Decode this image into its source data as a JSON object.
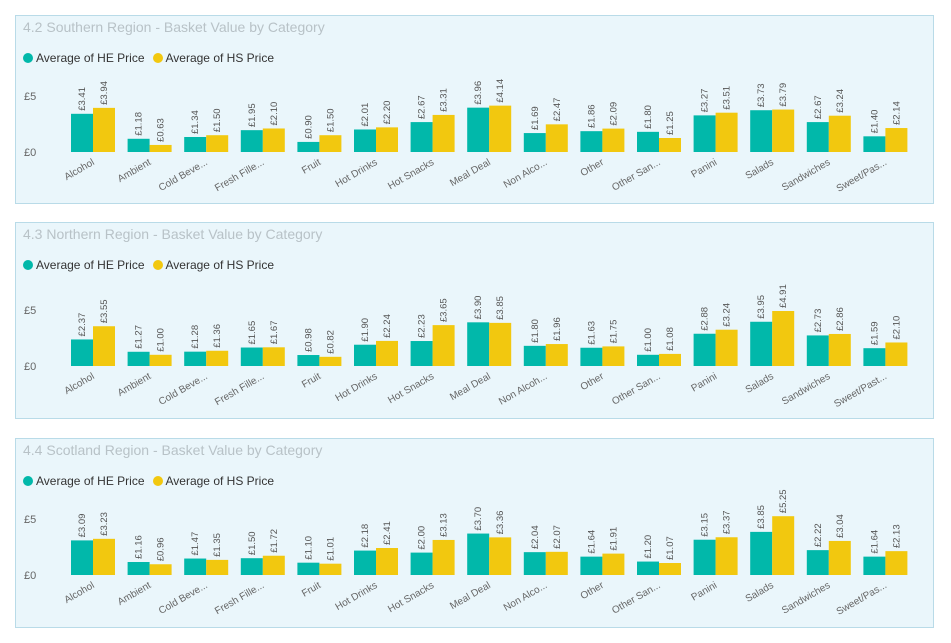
{
  "colors": {
    "he": "#01b8aa",
    "hs": "#f2c80f",
    "panel_bg": "#eaf6fb",
    "panel_border": "#b9dbe8"
  },
  "legend": {
    "he_label": "Average of HE Price",
    "hs_label": "Average of HS Price"
  },
  "chart_data": [
    {
      "type": "bar",
      "title": "4.2 Southern Region - Basket Value by Category",
      "categories": [
        "Alcohol",
        "Ambient",
        "Cold Beve...",
        "Fresh Fille...",
        "Fruit",
        "Hot Drinks",
        "Hot Snacks",
        "Meal Deal",
        "Non Alco...",
        "Other",
        "Other San...",
        "Panini",
        "Salads",
        "Sandwiches",
        "Sweet/Pas..."
      ],
      "series": [
        {
          "name": "Average of HE Price",
          "values": [
            3.41,
            1.18,
            1.34,
            1.95,
            0.9,
            2.01,
            2.67,
            3.96,
            1.69,
            1.86,
            1.8,
            3.27,
            3.73,
            2.67,
            1.4
          ],
          "labels": [
            "£3.41",
            "£1.18",
            "£1.34",
            "£1.95",
            "£0.90",
            "£2.01",
            "£2.67",
            "£3.96",
            "£1.69",
            "£1.86",
            "£1.80",
            "£3.27",
            "£3.73",
            "£2.67",
            "£1.40"
          ]
        },
        {
          "name": "Average of HS Price",
          "values": [
            3.94,
            0.63,
            1.5,
            2.1,
            1.5,
            2.2,
            3.31,
            4.14,
            2.47,
            2.09,
            1.25,
            3.51,
            3.79,
            3.24,
            2.14
          ],
          "labels": [
            "£3.94",
            "£0.63",
            "£1.50",
            "£2.10",
            "£1.50",
            "£2.20",
            "£3.31",
            "£4.14",
            "£2.47",
            "£2.09",
            "£1.25",
            "£3.51",
            "£3.79",
            "£3.24",
            "£2.14"
          ]
        }
      ],
      "yticks": [
        "£0",
        "£5"
      ],
      "ylim": [
        0,
        5
      ],
      "legend_position": "top-left",
      "grid": false
    },
    {
      "type": "bar",
      "title": "4.3 Northern Region - Basket Value by Category",
      "categories": [
        "Alcohol",
        "Ambient",
        "Cold Beve...",
        "Fresh Fille...",
        "Fruit",
        "Hot Drinks",
        "Hot Snacks",
        "Meal Deal",
        "Non Alcoh...",
        "Other",
        "Other San...",
        "Panini",
        "Salads",
        "Sandwiches",
        "Sweet/Past..."
      ],
      "series": [
        {
          "name": "Average of HE Price",
          "values": [
            2.37,
            1.27,
            1.28,
            1.65,
            0.98,
            1.9,
            2.23,
            3.9,
            1.8,
            1.63,
            1.0,
            2.88,
            3.95,
            2.73,
            1.59
          ],
          "labels": [
            "£2.37",
            "£1.27",
            "£1.28",
            "£1.65",
            "£0.98",
            "£1.90",
            "£2.23",
            "£3.90",
            "£1.80",
            "£1.63",
            "£1.00",
            "£2.88",
            "£3.95",
            "£2.73",
            "£1.59"
          ]
        },
        {
          "name": "Average of HS Price",
          "values": [
            3.55,
            1.0,
            1.36,
            1.67,
            0.82,
            2.24,
            3.65,
            3.85,
            1.96,
            1.75,
            1.08,
            3.24,
            4.91,
            2.86,
            2.1
          ],
          "labels": [
            "£3.55",
            "£1.00",
            "£1.36",
            "£1.67",
            "£0.82",
            "£2.24",
            "£3.65",
            "£3.85",
            "£1.96",
            "£1.75",
            "£1.08",
            "£3.24",
            "£4.91",
            "£2.86",
            "£2.10"
          ]
        }
      ],
      "yticks": [
        "£0",
        "£5"
      ],
      "ylim": [
        0,
        5
      ],
      "legend_position": "top-left",
      "grid": false
    },
    {
      "type": "bar",
      "title": "4.4 Scotland Region - Basket Value by Category",
      "categories": [
        "Alcohol",
        "Ambient",
        "Cold Beve...",
        "Fresh Fille...",
        "Fruit",
        "Hot Drinks",
        "Hot Snacks",
        "Meal Deal",
        "Non Alco...",
        "Other",
        "Other San...",
        "Panini",
        "Salads",
        "Sandwiches",
        "Sweet/Pas..."
      ],
      "series": [
        {
          "name": "Average of HE Price",
          "values": [
            3.09,
            1.16,
            1.47,
            1.5,
            1.1,
            2.18,
            2.0,
            3.7,
            2.04,
            1.64,
            1.2,
            3.15,
            3.85,
            2.22,
            1.64
          ],
          "labels": [
            "£3.09",
            "£1.16",
            "£1.47",
            "£1.50",
            "£1.10",
            "£2.18",
            "£2.00",
            "£3.70",
            "£2.04",
            "£1.64",
            "£1.20",
            "£3.15",
            "£3.85",
            "£2.22",
            "£1.64"
          ]
        },
        {
          "name": "Average of HS Price",
          "values": [
            3.23,
            0.96,
            1.35,
            1.72,
            1.01,
            2.41,
            3.13,
            3.36,
            2.07,
            1.91,
            1.07,
            3.37,
            5.25,
            3.04,
            2.13
          ],
          "labels": [
            "£3.23",
            "£0.96",
            "£1.35",
            "£1.72",
            "£1.01",
            "£2.41",
            "£3.13",
            "£3.36",
            "£2.07",
            "£1.91",
            "£1.07",
            "£3.37",
            "£5.25",
            "£3.04",
            "£2.13"
          ]
        }
      ],
      "yticks": [
        "£0",
        "£5"
      ],
      "ylim": [
        0,
        5
      ],
      "legend_position": "top-left",
      "grid": false
    }
  ]
}
